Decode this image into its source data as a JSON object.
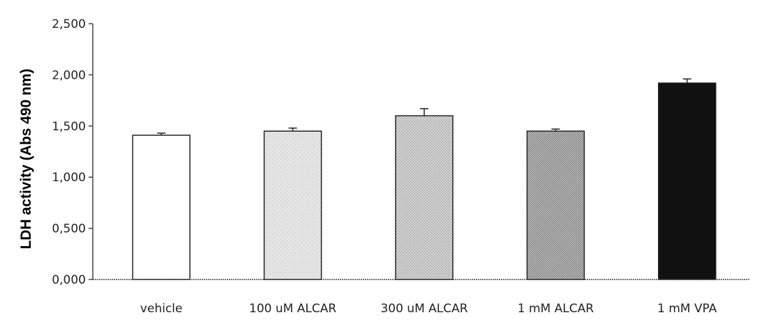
{
  "chart_data": {
    "type": "bar",
    "title": "",
    "xlabel": "",
    "ylabel": "LDH activity (Abs 490 nm)",
    "ylim": [
      0,
      2.5
    ],
    "yticks": [
      "0,000",
      "0,500",
      "1,000",
      "1,500",
      "2,000",
      "2,500"
    ],
    "ytick_values": [
      0,
      0.5,
      1.0,
      1.5,
      2.0,
      2.5
    ],
    "categories": [
      "vehicle",
      "100 uM ALCAR",
      "300 uM ALCAR",
      "1 mM ALCAR",
      "1 mM VPA"
    ],
    "values": [
      1.41,
      1.45,
      1.6,
      1.45,
      1.92
    ],
    "errors": [
      0.02,
      0.03,
      0.07,
      0.02,
      0.04
    ],
    "bar_fills": [
      "white",
      "light-stipple",
      "medium-stipple",
      "dense-hatch",
      "solid-black"
    ],
    "grid": false,
    "legend": "none"
  }
}
